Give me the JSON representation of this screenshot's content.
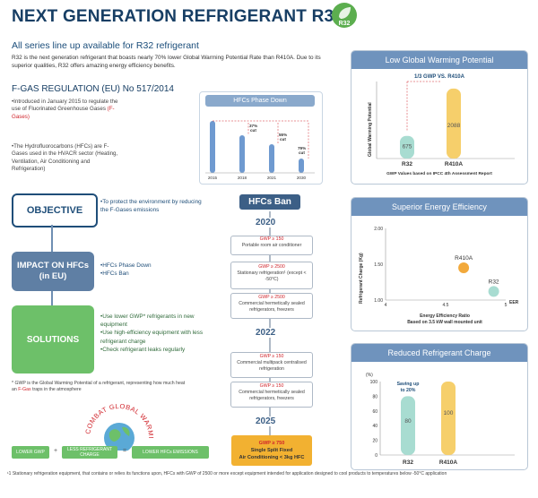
{
  "header": {
    "title": "NEXT GENERATION REFRIGERANT R32",
    "badge": "R32"
  },
  "intro": {
    "subhead": "All series line up available for R32 refrigerant",
    "text": "R32 is the next generation refrigerant that boasts nearly 70% lower Global Warming Potential Rate than R410A. Due to its superior qualities, R32 offers amazing energy efficiency benefits."
  },
  "fgas": {
    "title": "F-GAS REGULATION  (EU) No 517/2014",
    "bullet1_a": "•Introduced in January 2015 to regulate the use of Fluorinated Greenhouse Gases ",
    "bullet1_b": "(F-Gases)",
    "bullet2": "•The Hydrofluorocarbons (HFCs) are F-Gases used in the HVACR sector (Heating, Ventilation, Air Conditioning and Refrigeration)"
  },
  "phase_down": {
    "title": "HFCs Phase Down",
    "chart_data": {
      "type": "bar",
      "categories": [
        "2015",
        "2018",
        "2021",
        "2030"
      ],
      "cut_labels": [
        "",
        "37%\ncut",
        "55%\ncut",
        "79%\ncut"
      ]
    }
  },
  "objective": {
    "label": "OBJECTIVE",
    "text": "•To protect the environment by reducing the F-Gases emissions"
  },
  "impact": {
    "label": "IMPACT ON HFCs (in EU)",
    "items": [
      "•HFCs Phase Down",
      "•HFCs Ban"
    ]
  },
  "solutions": {
    "label": "SOLUTIONS",
    "items": [
      "•Use lower GWP* refrigerants in new equipment",
      "•Use high-efficiency equipment with less refrigerant charge",
      "•Check refrigerant leaks regularly"
    ]
  },
  "gwp_note": {
    "a": "* GWP is the Global Warming Potential of a refrigerant, representing how much heat an ",
    "b": "F-Gas",
    "c": " traps in the atmosphere"
  },
  "combat": {
    "arc_text": "COMBAT GLOBAL WARMING",
    "chips": [
      "LOWER GWP",
      "LESS REFRIGERANT CHARGE",
      "LOWER HFCs EMISSIONS"
    ],
    "ops": [
      "+",
      "="
    ]
  },
  "hfc_ban": {
    "title": "HFCs Ban",
    "years": [
      "2020",
      "2022",
      "2025"
    ],
    "cards": [
      {
        "gwp": "GWP ≥ 150",
        "text": "Portable room air conditioner"
      },
      {
        "gwp": "GWP ≥ 2500",
        "text": "Stationary refrigeration¹ (except < -50°C)"
      },
      {
        "gwp": "GWP ≥ 2500",
        "text": "Commercial hermetically sealed refrigerators, freezers"
      },
      {
        "gwp": "GWP ≥ 150",
        "text": "Commercial multipack centralised refrigeration"
      },
      {
        "gwp": "GWP ≥ 150",
        "text": "Commercial hermetically sealed refrigerators, freezers"
      }
    ],
    "final": {
      "gwp": "GWP ≥ 750",
      "line1": "Single Split Fixed",
      "line2": "Air Conditioning < 3kg HFC"
    }
  },
  "gwp_panel": {
    "title": "Low Global Warming Potential",
    "subtitle": "1/3 GWP VS. R410A",
    "ylabel": "Global Warming Potential",
    "caption": "GWP Values based on IPCC 4th Assessment Report",
    "chart_data": {
      "type": "bar",
      "categories": [
        "R32",
        "R410A"
      ],
      "values": [
        675,
        2088
      ]
    }
  },
  "eer_panel": {
    "title": "Superior Energy Efficiency",
    "ylabel": "Refrigerant Charge (Kg)",
    "xlabel": "Energy Efficiency Ratio",
    "note": "Based on 3.5 kW wall mounted unit",
    "axis_unit": "EER",
    "chart_data": {
      "type": "scatter",
      "x_ticks": [
        "4",
        "4.5",
        "5"
      ],
      "y_ticks": [
        "1.00",
        "1.50",
        "2.00"
      ],
      "xlim": [
        4,
        5
      ],
      "ylim": [
        1.0,
        2.0
      ],
      "points": [
        {
          "label": "R410A",
          "x": 4.65,
          "y": 1.45,
          "color": "#f2a93b"
        },
        {
          "label": "R32",
          "x": 4.9,
          "y": 1.12,
          "color": "#a8dcd1"
        }
      ]
    }
  },
  "charge_panel": {
    "title": "Reduced Refrigerant Charge",
    "unit": "(%)",
    "annotation": "Saving up to 20%",
    "chart_data": {
      "type": "bar",
      "categories": [
        "R32",
        "R410A"
      ],
      "values": [
        80,
        100
      ],
      "y_ticks": [
        "0",
        "20",
        "40",
        "60",
        "80",
        "100"
      ],
      "ylim": [
        0,
        100
      ]
    }
  },
  "footnote": "¹1 Stationary refrigeration equipment, that contains or relies its functions upon, HFCs with GWP of 2500 or more except equipment intended for application designed to cool products to temperatures below -50°C application"
}
